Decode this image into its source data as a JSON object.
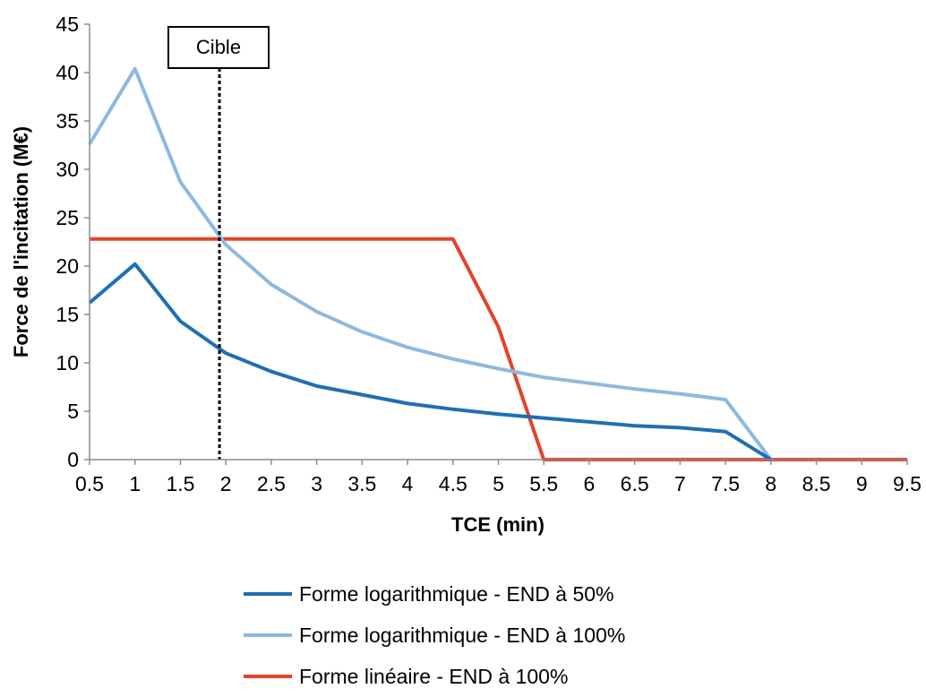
{
  "chart_data": {
    "type": "line",
    "xlabel": "TCE (min)",
    "ylabel": "Force de l'incitation (M€)",
    "x": [
      0.5,
      1,
      1.5,
      2,
      2.5,
      3,
      3.5,
      4,
      4.5,
      5,
      5.5,
      6,
      6.5,
      7,
      7.5,
      8,
      8.5,
      9,
      9.5
    ],
    "x_tick_labels": [
      "0.5",
      "1",
      "1.5",
      "2",
      "2.5",
      "3",
      "3.5",
      "4",
      "4.5",
      "5",
      "5.5",
      "6",
      "6.5",
      "7",
      "7.5",
      "8",
      "8.5",
      "9",
      "9.5"
    ],
    "xlim": [
      0.5,
      9.5
    ],
    "ylim": [
      0,
      45
    ],
    "y_ticks": [
      0,
      5,
      10,
      15,
      20,
      25,
      30,
      35,
      40,
      45
    ],
    "grid": false,
    "legend_position": "bottom",
    "series": [
      {
        "name": "Forme logarithmique - END à 50%",
        "color": "#1F6FB4",
        "values": [
          16.2,
          20.2,
          14.3,
          11.0,
          9.1,
          7.6,
          6.7,
          5.8,
          5.2,
          4.7,
          4.3,
          3.9,
          3.5,
          3.3,
          2.9,
          0,
          null,
          null,
          null
        ]
      },
      {
        "name": "Forme logarithmique - END à 100%",
        "color": "#8EB9DF",
        "values": [
          32.6,
          40.4,
          28.7,
          22.2,
          18.1,
          15.3,
          13.2,
          11.6,
          10.4,
          9.4,
          8.5,
          7.9,
          7.3,
          6.8,
          6.2,
          0,
          null,
          null,
          null
        ]
      },
      {
        "name": "Forme linéaire - END à 100%",
        "color": "#E3432A",
        "values": [
          22.8,
          22.8,
          22.8,
          22.8,
          22.8,
          22.8,
          22.8,
          22.8,
          22.8,
          13.7,
          0,
          0,
          0,
          0,
          0,
          0,
          0,
          0,
          0
        ]
      }
    ],
    "annotations": [
      {
        "text": "Cible",
        "x": 1.93
      }
    ]
  }
}
